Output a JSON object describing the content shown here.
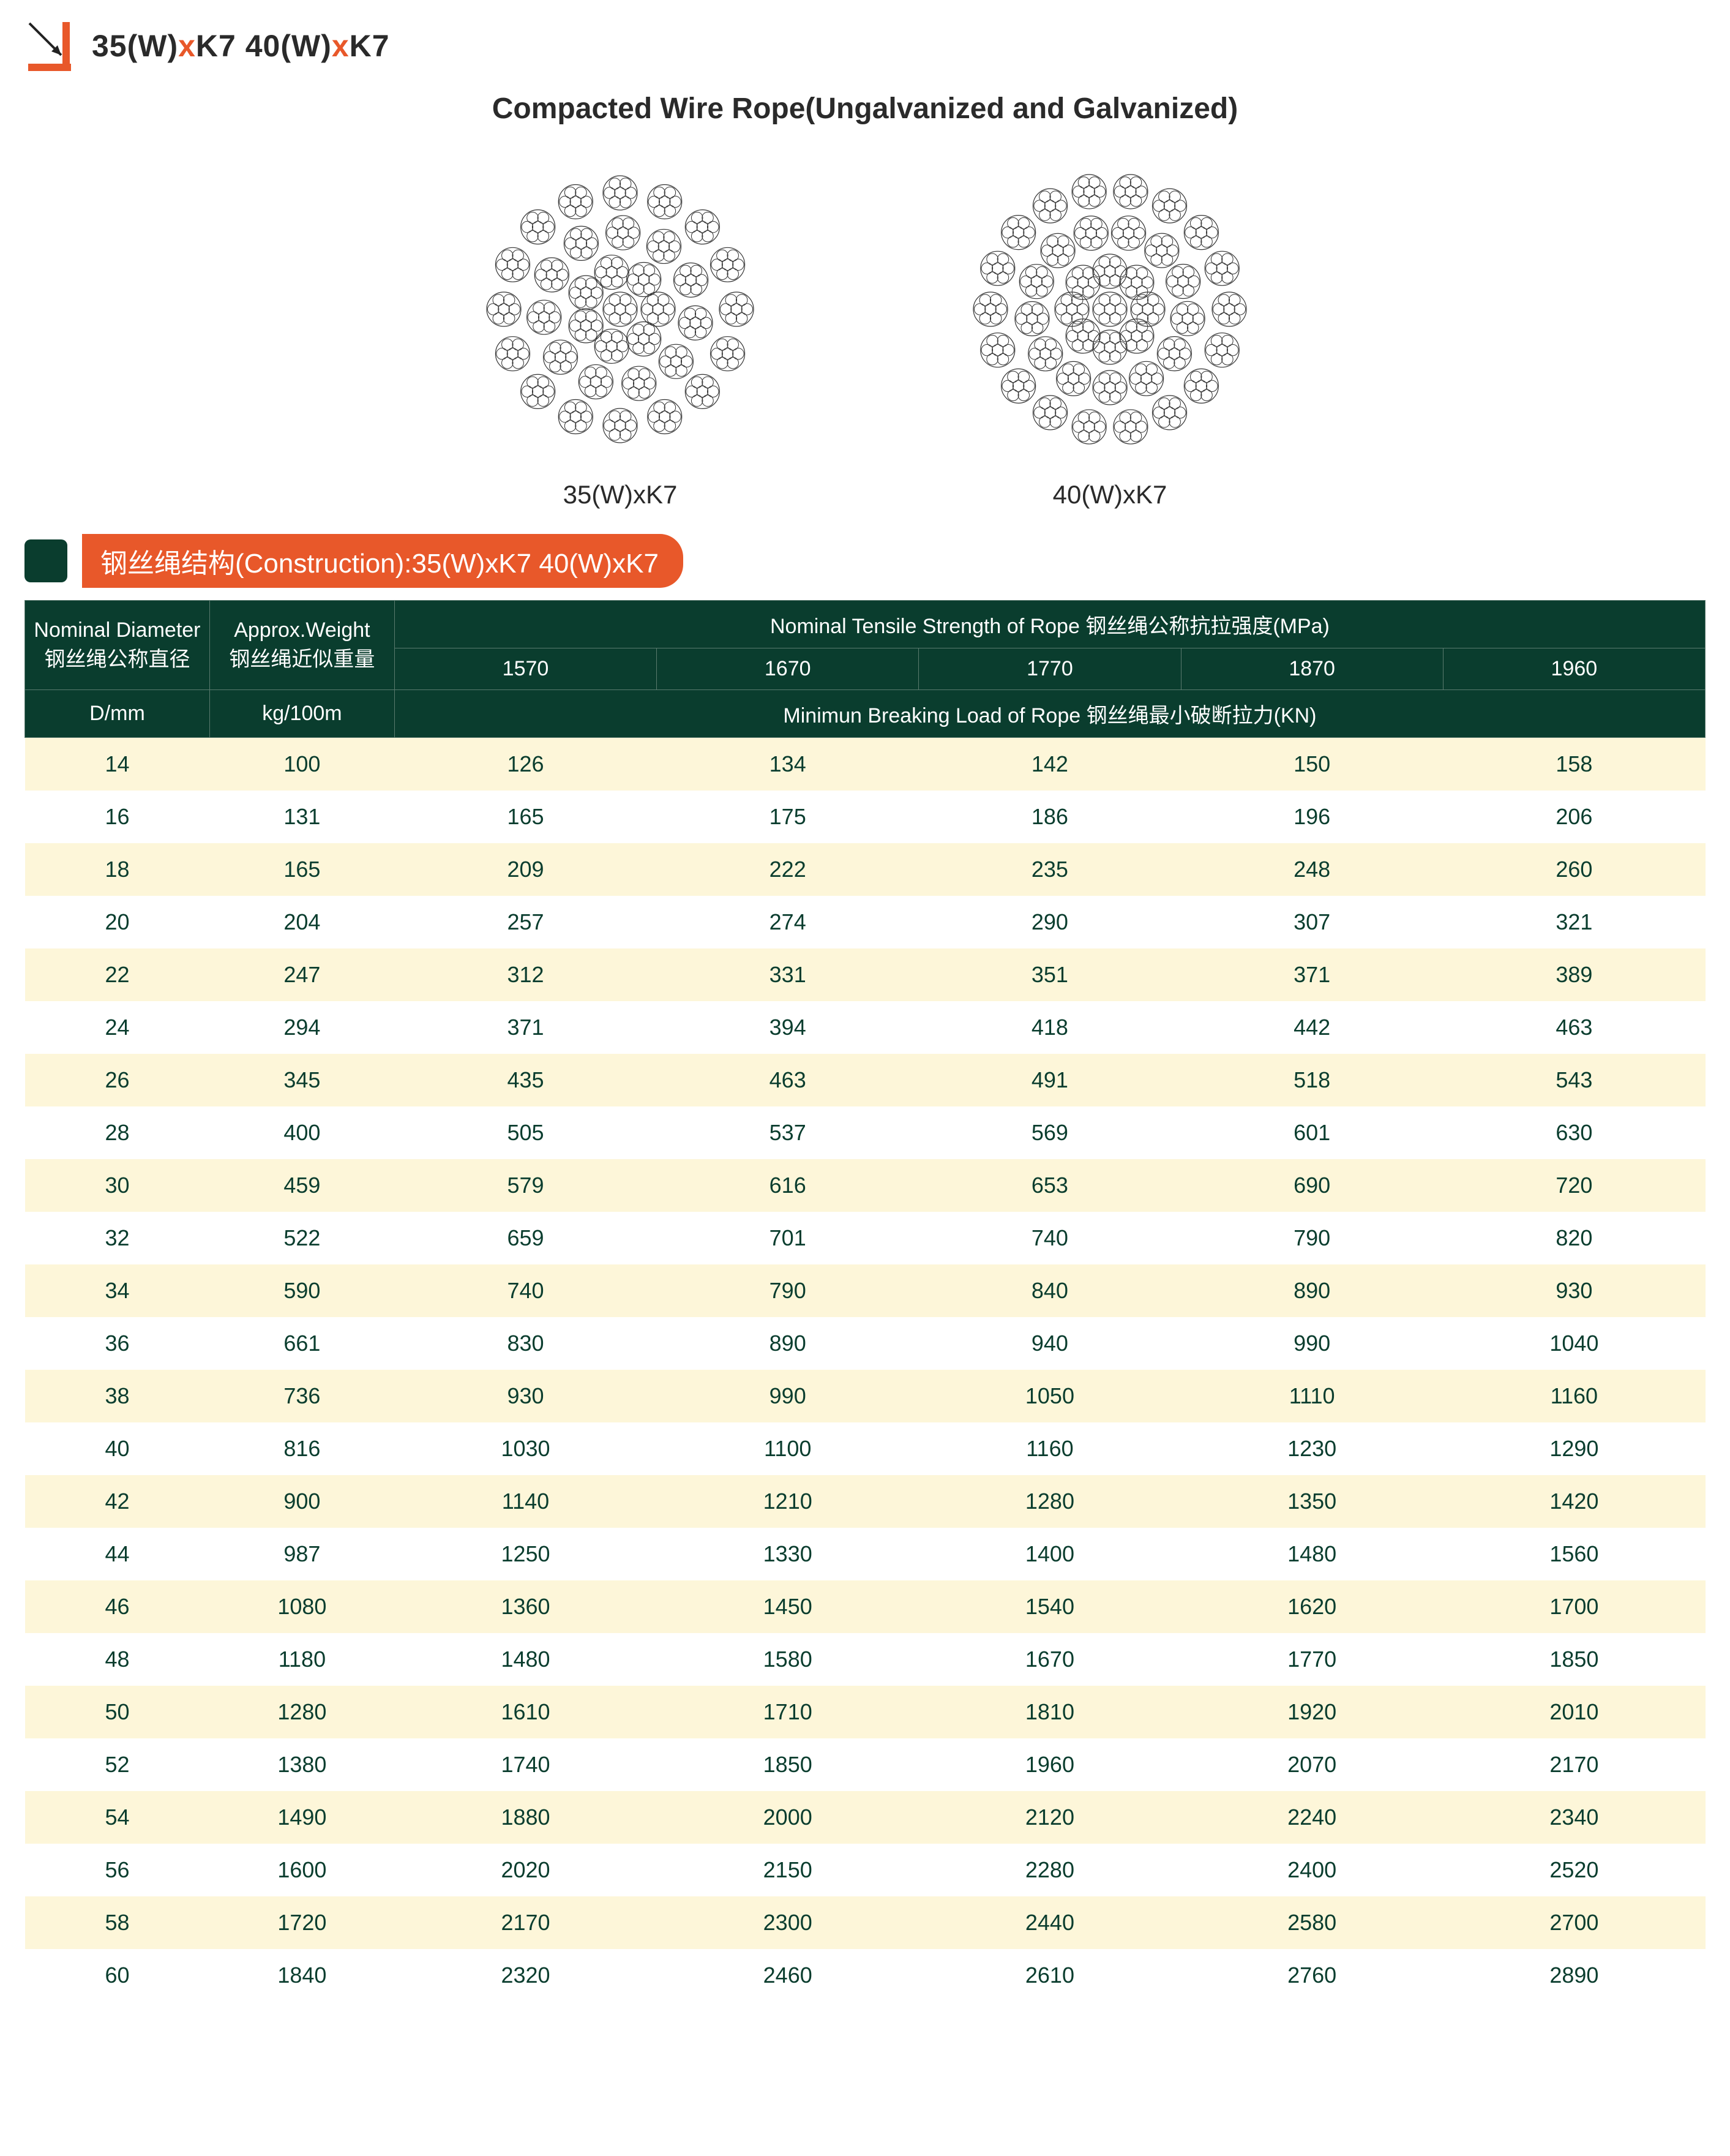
{
  "header": {
    "code_parts": [
      "35(W)",
      "x",
      "K7 40(W)",
      "x",
      "K7"
    ],
    "subtitle": "Compacted Wire Rope(Ungalvanized and Galvanized)"
  },
  "diagrams": [
    {
      "label": "35(W)xK7",
      "strands": 35
    },
    {
      "label": "40(W)xK7",
      "strands": 40
    }
  ],
  "construction_label": "钢丝绳结构(Construction):35(W)xK7 40(W)xK7",
  "colors": {
    "accent": "#e8582a",
    "header_bg": "#0a3d2e",
    "row_odd": "#fdf6d9",
    "row_even": "#ffffff",
    "text_body": "#0a3d2e"
  },
  "table": {
    "col_diameter_l1": "Nominal Diameter",
    "col_diameter_l2": "钢丝绳公称直径",
    "col_diameter_unit": "D/mm",
    "col_weight_l1": "Approx.Weight",
    "col_weight_l2": "钢丝绳近似重量",
    "col_weight_unit": "kg/100m",
    "tensile_header": "Nominal Tensile Strength of Rope  钢丝绳公称抗拉强度(MPa)",
    "breaking_header": "Minimun Breaking Load of Rope  钢丝绳最小破断拉力(KN)",
    "tensiles": [
      "1570",
      "1670",
      "1770",
      "1870",
      "1960"
    ],
    "rows": [
      {
        "d": "14",
        "w": "100",
        "v": [
          "126",
          "134",
          "142",
          "150",
          "158"
        ]
      },
      {
        "d": "16",
        "w": "131",
        "v": [
          "165",
          "175",
          "186",
          "196",
          "206"
        ]
      },
      {
        "d": "18",
        "w": "165",
        "v": [
          "209",
          "222",
          "235",
          "248",
          "260"
        ]
      },
      {
        "d": "20",
        "w": "204",
        "v": [
          "257",
          "274",
          "290",
          "307",
          "321"
        ]
      },
      {
        "d": "22",
        "w": "247",
        "v": [
          "312",
          "331",
          "351",
          "371",
          "389"
        ]
      },
      {
        "d": "24",
        "w": "294",
        "v": [
          "371",
          "394",
          "418",
          "442",
          "463"
        ]
      },
      {
        "d": "26",
        "w": "345",
        "v": [
          "435",
          "463",
          "491",
          "518",
          "543"
        ]
      },
      {
        "d": "28",
        "w": "400",
        "v": [
          "505",
          "537",
          "569",
          "601",
          "630"
        ]
      },
      {
        "d": "30",
        "w": "459",
        "v": [
          "579",
          "616",
          "653",
          "690",
          "720"
        ]
      },
      {
        "d": "32",
        "w": "522",
        "v": [
          "659",
          "701",
          "740",
          "790",
          "820"
        ]
      },
      {
        "d": "34",
        "w": "590",
        "v": [
          "740",
          "790",
          "840",
          "890",
          "930"
        ]
      },
      {
        "d": "36",
        "w": "661",
        "v": [
          "830",
          "890",
          "940",
          "990",
          "1040"
        ]
      },
      {
        "d": "38",
        "w": "736",
        "v": [
          "930",
          "990",
          "1050",
          "1110",
          "1160"
        ]
      },
      {
        "d": "40",
        "w": "816",
        "v": [
          "1030",
          "1100",
          "1160",
          "1230",
          "1290"
        ]
      },
      {
        "d": "42",
        "w": "900",
        "v": [
          "1140",
          "1210",
          "1280",
          "1350",
          "1420"
        ]
      },
      {
        "d": "44",
        "w": "987",
        "v": [
          "1250",
          "1330",
          "1400",
          "1480",
          "1560"
        ]
      },
      {
        "d": "46",
        "w": "1080",
        "v": [
          "1360",
          "1450",
          "1540",
          "1620",
          "1700"
        ]
      },
      {
        "d": "48",
        "w": "1180",
        "v": [
          "1480",
          "1580",
          "1670",
          "1770",
          "1850"
        ]
      },
      {
        "d": "50",
        "w": "1280",
        "v": [
          "1610",
          "1710",
          "1810",
          "1920",
          "2010"
        ]
      },
      {
        "d": "52",
        "w": "1380",
        "v": [
          "1740",
          "1850",
          "1960",
          "2070",
          "2170"
        ]
      },
      {
        "d": "54",
        "w": "1490",
        "v": [
          "1880",
          "2000",
          "2120",
          "2240",
          "2340"
        ]
      },
      {
        "d": "56",
        "w": "1600",
        "v": [
          "2020",
          "2150",
          "2280",
          "2400",
          "2520"
        ]
      },
      {
        "d": "58",
        "w": "1720",
        "v": [
          "2170",
          "2300",
          "2440",
          "2580",
          "2700"
        ]
      },
      {
        "d": "60",
        "w": "1840",
        "v": [
          "2320",
          "2460",
          "2610",
          "2760",
          "2890"
        ]
      }
    ]
  }
}
